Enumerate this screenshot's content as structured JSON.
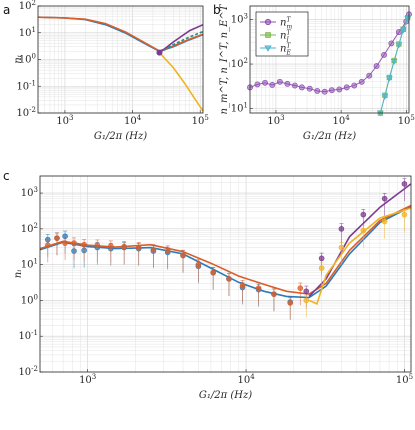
{
  "panels": {
    "a": {
      "label": "a"
    },
    "b": {
      "label": "b"
    },
    "c": {
      "label": "c"
    }
  },
  "colors": {
    "blue": "#2b7bba",
    "orange": "#d95f2a",
    "yellow": "#f0b323",
    "purple": "#7e3a8f",
    "teal": "#2a8a8a",
    "green": "#7ab648",
    "cyan": "#49b4cf",
    "violet": "#8c4fb0"
  },
  "chart_data": [
    {
      "panel": "a",
      "type": "line",
      "xscale": "log",
      "yscale": "log",
      "xlim": [
        400,
        110000
      ],
      "ylim": [
        0.01,
        100
      ],
      "xlabel": "G_1/2π (Hz)",
      "ylabel": "n_i",
      "xticks": [
        "10^3",
        "10^4",
        "10^5"
      ],
      "yticks": [
        "10^-2",
        "10^-1",
        "10^0",
        "10^1",
        "10^2"
      ],
      "series": [
        {
          "color_key": "blue",
          "dash": false,
          "x": [
            400,
            1000,
            2000,
            4000,
            8000,
            15000,
            25000,
            40000,
            70000,
            110000
          ],
          "y": [
            38,
            36,
            31,
            20,
            9.5,
            4.0,
            2.0,
            3.0,
            5.5,
            8.5
          ]
        },
        {
          "color_key": "orange",
          "dash": false,
          "x": [
            400,
            1000,
            2000,
            4000,
            8000,
            15000,
            25000,
            40000,
            70000,
            110000
          ],
          "y": [
            38,
            36,
            32,
            22,
            10.5,
            4.3,
            2.1,
            3.2,
            5.8,
            8.8
          ]
        },
        {
          "color_key": "purple",
          "dash": false,
          "x": [
            25000,
            40000,
            70000,
            110000
          ],
          "y": [
            1.8,
            4.5,
            12,
            20
          ]
        },
        {
          "color_key": "yellow",
          "dash": false,
          "x": [
            25000,
            40000,
            60000,
            80000,
            110000
          ],
          "y": [
            1.8,
            0.5,
            0.12,
            0.04,
            0.012
          ]
        },
        {
          "color_key": "teal",
          "dash": true,
          "x": [
            25000,
            40000,
            70000,
            110000
          ],
          "y": [
            1.8,
            3.6,
            7,
            11
          ]
        }
      ],
      "markers": [
        {
          "x": 25000,
          "y": 1.8,
          "color_key": "purple"
        }
      ]
    },
    {
      "panel": "b",
      "type": "line",
      "xscale": "log",
      "yscale": "log",
      "xlim": [
        400,
        110000
      ],
      "ylim": [
        8,
        2000
      ],
      "xlabel": "G_1/2π (Hz)",
      "ylabel": "n_m^T, n_I^T, n_E^T",
      "xticks": [
        "10^3",
        "10^4",
        "10^5"
      ],
      "yticks": [
        "10^1",
        "10^2",
        "10^3"
      ],
      "legend": {
        "position": "top-left",
        "entries": [
          {
            "label": "n_m^T",
            "color_key": "violet",
            "marker": "circle"
          },
          {
            "label": "n_I^T",
            "color_key": "green",
            "marker": "square"
          },
          {
            "label": "n_E^T",
            "color_key": "cyan",
            "marker": "triangle"
          }
        ]
      },
      "series": [
        {
          "name": "n_m^T",
          "color_key": "violet",
          "marker": "circle",
          "x": [
            400,
            520,
            680,
            880,
            1150,
            1500,
            1950,
            2500,
            3300,
            4300,
            5600,
            7200,
            9400,
            12200,
            15900,
            20700,
            27000,
            35000,
            45500,
            59000,
            77000,
            100000,
            110000
          ],
          "y": [
            30,
            35,
            38,
            34,
            40,
            36,
            33,
            30,
            28,
            25,
            24,
            26,
            27,
            30,
            33,
            40,
            55,
            90,
            160,
            290,
            520,
            900,
            1300
          ]
        },
        {
          "name": "n_I^T",
          "color_key": "green",
          "marker": "square",
          "x": [
            40000,
            47000,
            55000,
            65000,
            77000,
            90000,
            105000
          ],
          "y": [
            8,
            20,
            50,
            120,
            280,
            600,
            1100
          ]
        },
        {
          "name": "n_E^T",
          "color_key": "cyan",
          "marker": "triangle",
          "x": [
            40000,
            47000,
            55000,
            65000,
            77000,
            90000,
            105000
          ],
          "y": [
            8,
            19,
            48,
            115,
            270,
            580,
            1050
          ]
        }
      ]
    },
    {
      "panel": "c",
      "type": "line",
      "xscale": "log",
      "yscale": "log",
      "xlim": [
        500,
        110000
      ],
      "ylim": [
        0.01,
        3000
      ],
      "xlabel": "G_1/2π (Hz)",
      "ylabel": "n_i",
      "xticks": [
        "10^3",
        "10^4",
        "10^5"
      ],
      "yticks": [
        "10^-2",
        "10^-1",
        "10^0",
        "10^1",
        "10^2",
        "10^3"
      ],
      "series": [
        {
          "color_key": "blue",
          "x": [
            500,
            700,
            1000,
            1500,
            2500,
            4000,
            6000,
            9000,
            13000,
            18000,
            25000,
            32000,
            45000,
            70000,
            110000
          ],
          "y": [
            26,
            42,
            32,
            28,
            30,
            20,
            8,
            3.2,
            1.8,
            1.3,
            1.2,
            2.5,
            20,
            150,
            420
          ]
        },
        {
          "color_key": "orange",
          "x": [
            500,
            700,
            1000,
            1500,
            2500,
            4000,
            6000,
            9000,
            13000,
            18000,
            25000,
            32000,
            45000,
            70000,
            110000
          ],
          "y": [
            28,
            45,
            35,
            31,
            36,
            23,
            11,
            4.8,
            2.8,
            1.8,
            1.5,
            3.0,
            25,
            170,
            450
          ]
        },
        {
          "color_key": "purple",
          "x": [
            25000,
            32000,
            45000,
            70000,
            110000
          ],
          "y": [
            1.3,
            4,
            60,
            400,
            1800
          ]
        },
        {
          "color_key": "yellow",
          "x": [
            25000,
            28000,
            32000,
            45000,
            70000,
            110000
          ],
          "y": [
            1.0,
            0.8,
            5,
            40,
            200,
            380
          ]
        }
      ],
      "points": [
        {
          "color_key": "blue",
          "x": [
            560,
            640,
            720,
            820,
            950,
            1150,
            1400,
            1700,
            2100,
            2600,
            3200,
            4000,
            5000,
            6200,
            7800,
            9500,
            12000,
            15000,
            19000
          ],
          "y": [
            50,
            55,
            62,
            24,
            25,
            30,
            28,
            30,
            28,
            24,
            22,
            18,
            9,
            6,
            4,
            2.3,
            2.0,
            1.5,
            0.9
          ]
        },
        {
          "color_key": "orange",
          "x": [
            560,
            640,
            720,
            820,
            950,
            1150,
            1400,
            1700,
            2100,
            2600,
            3200,
            4000,
            5000,
            6200,
            7800,
            9500,
            12000,
            15000,
            19000,
            22000
          ],
          "y": [
            35,
            55,
            40,
            40,
            36,
            35,
            33,
            32,
            30,
            26,
            24,
            18,
            10,
            6,
            4,
            2.6,
            2.2,
            1.5,
            0.85,
            2.2
          ]
        },
        {
          "color_key": "purple",
          "x": [
            24000,
            30000,
            40000,
            55000,
            75000,
            100000
          ],
          "y": [
            1.8,
            15,
            100,
            250,
            700,
            1800
          ]
        },
        {
          "color_key": "yellow",
          "x": [
            24000,
            30000,
            40000,
            55000,
            75000,
            100000
          ],
          "y": [
            1.0,
            8,
            30,
            90,
            160,
            250
          ]
        }
      ]
    }
  ]
}
